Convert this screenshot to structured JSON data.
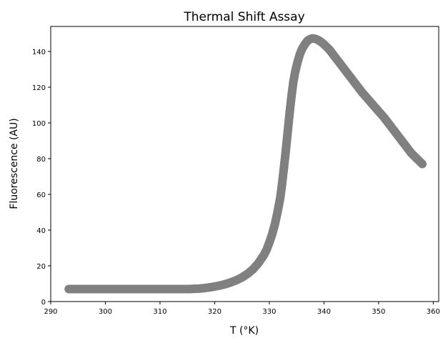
{
  "chart_data": {
    "type": "scatter",
    "title": "Thermal Shift Assay",
    "xlabel": "T (°K)",
    "ylabel": "Fluorescence (AU)",
    "xlim": [
      290,
      361
    ],
    "ylim": [
      0,
      154
    ],
    "x_ticks": [
      290,
      300,
      310,
      320,
      330,
      340,
      350,
      360
    ],
    "y_ticks": [
      0,
      20,
      40,
      60,
      80,
      100,
      120,
      140
    ],
    "grid": false,
    "marker_color": "#808080",
    "series": [
      {
        "x": [
          293.3,
          295,
          297,
          299,
          301,
          303,
          305,
          307,
          309,
          311,
          313,
          315,
          317,
          318,
          319,
          320,
          321,
          322,
          323,
          324,
          325,
          326,
          327,
          328,
          329,
          329.5,
          330,
          330.5,
          331,
          331.5,
          332,
          332.3,
          332.6,
          332.9,
          333.2,
          333.5,
          333.8,
          334.1,
          334.4,
          334.7,
          335,
          335.3,
          335.6,
          336,
          336.5,
          337,
          337.5,
          338,
          338.5,
          339,
          339.5,
          340,
          340.5,
          341,
          341.5,
          342,
          343,
          344,
          345,
          346,
          347,
          348,
          349,
          350,
          351,
          352,
          353,
          354,
          355,
          356,
          357,
          358
        ],
        "y": [
          7,
          7,
          7,
          7,
          7,
          7,
          7,
          7,
          7,
          7,
          7,
          7,
          7.2,
          7.5,
          7.9,
          8.4,
          9,
          9.8,
          10.8,
          12,
          13.5,
          15.5,
          18,
          21.5,
          26,
          29,
          33,
          37.5,
          43,
          50,
          58,
          65,
          73,
          81,
          90,
          99,
          108,
          116,
          123,
          128,
          132,
          135.5,
          138.5,
          141.5,
          144,
          146,
          147,
          147.3,
          147,
          146.3,
          145.3,
          144,
          142.5,
          141,
          139,
          137,
          133,
          129,
          125,
          121,
          117,
          113.5,
          110,
          106.5,
          103,
          99,
          95,
          91,
          87,
          83,
          80,
          77
        ]
      }
    ]
  }
}
